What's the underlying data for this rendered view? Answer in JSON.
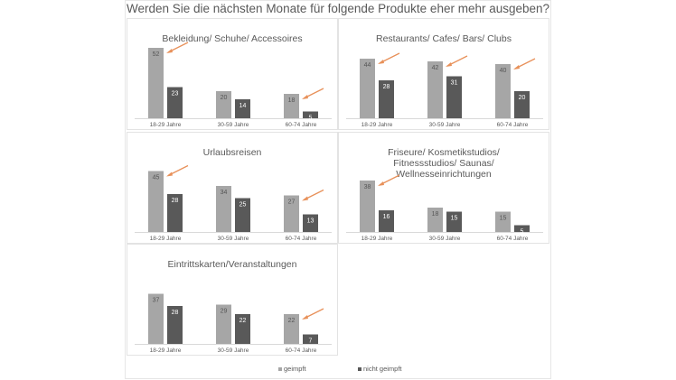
{
  "title": "Werden Sie die nächsten Monate für folgende Produkte eher mehr ausgeben?",
  "colors": {
    "geimpft": "#a6a6a6",
    "nicht_geimpft": "#595959",
    "arrow": "#e8915a"
  },
  "legend": [
    "geimpft",
    "nicht geimpft"
  ],
  "chart_data": [
    {
      "type": "bar",
      "title": "Bekleidung/ Schuhe/ Accessoires",
      "categories": [
        "18-29 Jahre",
        "30-59 Jahre",
        "60-74 Jahre"
      ],
      "series": [
        {
          "name": "geimpft",
          "values": [
            52,
            20,
            18
          ]
        },
        {
          "name": "nicht geimpft",
          "values": [
            23,
            14,
            5
          ]
        }
      ],
      "highlighted": [
        0,
        2
      ]
    },
    {
      "type": "bar",
      "title": "Restaurants/ Cafes/ Bars/ Clubs",
      "categories": [
        "18-29 Jahre",
        "30-59 Jahre",
        "60-74 Jahre"
      ],
      "series": [
        {
          "name": "geimpft",
          "values": [
            44,
            42,
            40
          ]
        },
        {
          "name": "nicht geimpft",
          "values": [
            28,
            31,
            20
          ]
        }
      ],
      "highlighted": [
        0,
        1,
        2
      ]
    },
    {
      "type": "bar",
      "title": "Urlaubsreisen",
      "categories": [
        "18-29 Jahre",
        "30-59 Jahre",
        "60-74 Jahre"
      ],
      "series": [
        {
          "name": "geimpft",
          "values": [
            45,
            34,
            27
          ]
        },
        {
          "name": "nicht geimpft",
          "values": [
            28,
            25,
            13
          ]
        }
      ],
      "highlighted": [
        0,
        2
      ]
    },
    {
      "type": "bar",
      "title": "Friseure/ Kosmetikstudios/ Fitnessstudios/ Saunas/ Wellnesseinrichtungen",
      "categories": [
        "18-29 Jahre",
        "30-59 Jahre",
        "60-74 Jahre"
      ],
      "series": [
        {
          "name": "geimpft",
          "values": [
            38,
            18,
            15
          ]
        },
        {
          "name": "nicht geimpft",
          "values": [
            16,
            15,
            5
          ]
        }
      ],
      "highlighted": [
        0
      ]
    },
    {
      "type": "bar",
      "title": "Eintrittskarten/Veranstaltungen",
      "categories": [
        "18-29 Jahre",
        "30-59 Jahre",
        "60-74 Jahre"
      ],
      "series": [
        {
          "name": "geimpft",
          "values": [
            37,
            29,
            22
          ]
        },
        {
          "name": "nicht geimpft",
          "values": [
            28,
            22,
            7
          ]
        }
      ],
      "highlighted": [
        2
      ]
    }
  ]
}
